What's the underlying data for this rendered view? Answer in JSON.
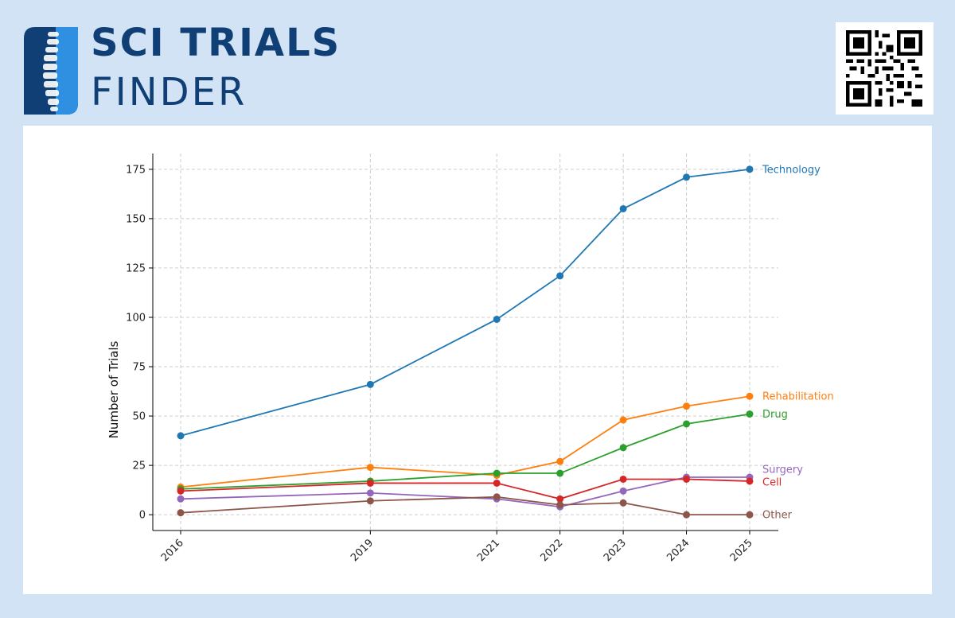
{
  "brand": {
    "line1": "SCI TRIALS",
    "line2": "FINDER",
    "color": "#0f3f75",
    "accent": "#2f8fe0"
  },
  "qr": {
    "icon": "qr-code-icon"
  },
  "chart_data": {
    "type": "line",
    "title": "",
    "xlabel": "",
    "ylabel": "Number of Trials",
    "x": [
      2016,
      2019,
      2021,
      2022,
      2023,
      2024,
      2025
    ],
    "ylim": [
      -8,
      183
    ],
    "yticks": [
      0,
      25,
      50,
      75,
      100,
      125,
      150,
      175
    ],
    "grid": true,
    "legend": "inline-right",
    "series": [
      {
        "name": "Technology",
        "color": "#1f77b4",
        "values": [
          40,
          66,
          99,
          121,
          155,
          171,
          175
        ]
      },
      {
        "name": "Rehabilitation",
        "color": "#ff7f0e",
        "values": [
          14,
          24,
          20,
          27,
          48,
          55,
          60
        ]
      },
      {
        "name": "Drug",
        "color": "#2ca02c",
        "values": [
          13,
          17,
          21,
          21,
          34,
          46,
          51
        ]
      },
      {
        "name": "Surgery",
        "color": "#9467bd",
        "values": [
          8,
          11,
          8,
          4,
          12,
          19,
          19
        ]
      },
      {
        "name": "Cell",
        "color": "#d62728",
        "values": [
          12,
          16,
          16,
          8,
          18,
          18,
          17
        ]
      },
      {
        "name": "Other",
        "color": "#8c564b",
        "values": [
          1,
          7,
          9,
          5,
          6,
          0,
          0
        ]
      }
    ]
  }
}
